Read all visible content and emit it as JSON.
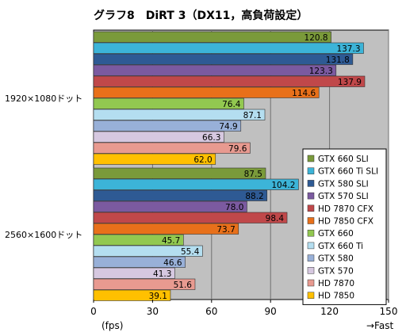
{
  "chart_data": {
    "type": "bar",
    "orientation": "horizontal",
    "title": "グラフ8　DiRT 3（DX11，高負荷設定）",
    "xlabel": "(fps)",
    "x_direction_label": "→Fast",
    "xlim": [
      0,
      150
    ],
    "x_ticks": [
      0,
      30,
      60,
      90,
      120,
      150
    ],
    "grid": true,
    "legend_position": "bottom-right",
    "groups": [
      "1920×1080ドット",
      "2560×1600ドット"
    ],
    "series": [
      {
        "name": "GTX 660 SLI",
        "color": "#7a9a3a",
        "values": [
          120.8,
          87.5
        ]
      },
      {
        "name": "GTX 660 Ti SLI",
        "color": "#3cb4d8",
        "values": [
          137.3,
          104.2
        ]
      },
      {
        "name": "GTX 580 SLI",
        "color": "#2e5a94",
        "values": [
          131.8,
          88.2
        ]
      },
      {
        "name": "GTX 570 SLI",
        "color": "#7b5aa0",
        "values": [
          123.3,
          78.0
        ]
      },
      {
        "name": "HD 7870 CFX",
        "color": "#c0484a",
        "values": [
          137.9,
          98.4
        ]
      },
      {
        "name": "HD 7850 CFX",
        "color": "#e8701a",
        "values": [
          114.6,
          73.7
        ]
      },
      {
        "name": "GTX 660",
        "color": "#92c850",
        "values": [
          76.4,
          45.7
        ]
      },
      {
        "name": "GTX 660 Ti",
        "color": "#b4def0",
        "values": [
          87.1,
          55.4
        ]
      },
      {
        "name": "GTX 580",
        "color": "#98b0d8",
        "values": [
          74.9,
          46.6
        ]
      },
      {
        "name": "GTX 570",
        "color": "#d6c8e0",
        "values": [
          66.3,
          41.3
        ]
      },
      {
        "name": "HD 7870",
        "color": "#e89a90",
        "values": [
          79.6,
          51.6
        ]
      },
      {
        "name": "HD 7850",
        "color": "#ffc000",
        "values": [
          62.0,
          39.1
        ]
      }
    ],
    "colors": {
      "plot_background": "#c0c0c0",
      "gridline": "#707070",
      "frame": "#000000",
      "bar_border": "#333333"
    }
  }
}
